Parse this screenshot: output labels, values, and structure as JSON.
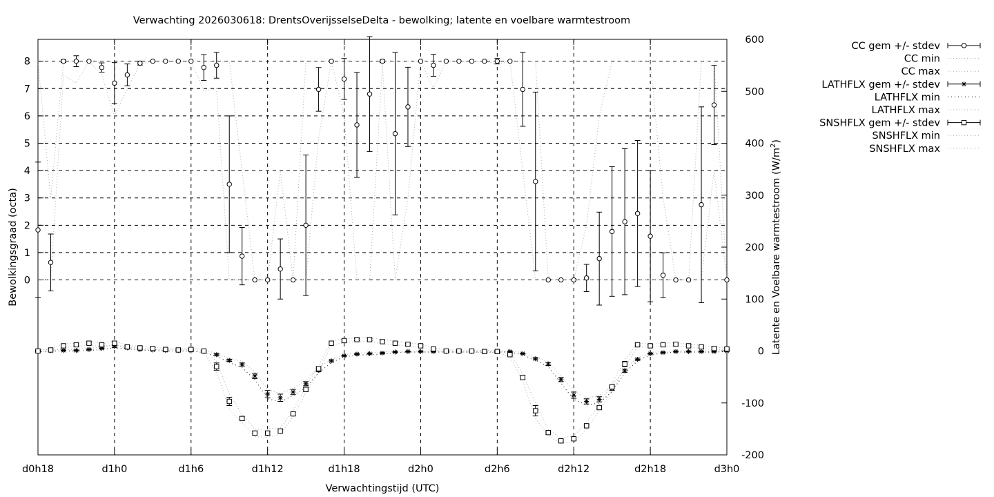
{
  "chart_data": {
    "type": "line",
    "title": "Verwachting 2026030618: DrentsOverijsselseDelta - bewolking; latente en voelbare warmtestroom",
    "xlabel": "Verwachtingstijd (UTC)",
    "ylabel": "Bewolkingsgraad (octa)",
    "y2label_main": "Latente en Voelbare warmtestroom (W/m",
    "y2label_sup": "2",
    "y2label_end": ")",
    "xlim": [
      0,
      54
    ],
    "ylim": [
      -6.4,
      8.8
    ],
    "y2lim": [
      -200,
      600
    ],
    "grid": true,
    "legend_position": "outside-right",
    "x_ticks": [
      {
        "x": 0,
        "label": "d0h18"
      },
      {
        "x": 6,
        "label": "d1h0"
      },
      {
        "x": 12,
        "label": "d1h6"
      },
      {
        "x": 18,
        "label": "d1h12"
      },
      {
        "x": 24,
        "label": "d1h18"
      },
      {
        "x": 30,
        "label": "d2h0"
      },
      {
        "x": 36,
        "label": "d2h6"
      },
      {
        "x": 42,
        "label": "d2h12"
      },
      {
        "x": 48,
        "label": "d2h18"
      },
      {
        "x": 54,
        "label": "d3h0"
      }
    ],
    "y_ticks": [
      0,
      1,
      2,
      3,
      4,
      5,
      6,
      7,
      8
    ],
    "y2_ticks": [
      -200,
      -100,
      0,
      100,
      200,
      300,
      400,
      500,
      600
    ],
    "legend": [
      {
        "label": "CC gem +/- stdev",
        "style": "circle-errorbar"
      },
      {
        "label": "CC min",
        "style": "dotted"
      },
      {
        "label": "CC max",
        "style": "dotted"
      },
      {
        "label": "LATHFLX gem +/- stdev",
        "style": "star-errorbar"
      },
      {
        "label": "LATHFLX min",
        "style": "dotted-dark"
      },
      {
        "label": "LATHFLX max",
        "style": "dotted"
      },
      {
        "label": "SNSHFLX gem +/- stdev",
        "style": "square-errorbar"
      },
      {
        "label": "SNSHFLX min",
        "style": "dotted"
      },
      {
        "label": "SNSHFLX max",
        "style": "dotted"
      }
    ],
    "series": [
      {
        "name": "CC gem +/- stdev",
        "axis": "y",
        "x": [
          0,
          1,
          2,
          3,
          4,
          5,
          6,
          7,
          8,
          9,
          10,
          11,
          12,
          13,
          14,
          15,
          16,
          17,
          18,
          19,
          20,
          21,
          22,
          23,
          24,
          25,
          26,
          27,
          28,
          29,
          30,
          31,
          32,
          33,
          34,
          35,
          36,
          37,
          38,
          39,
          40,
          41,
          42,
          43,
          44,
          45,
          46,
          47,
          48,
          49,
          50,
          51,
          52,
          53,
          54
        ],
        "mean": [
          1.83,
          0.64,
          8.0,
          8.0,
          8.0,
          7.77,
          7.2,
          7.5,
          7.93,
          8.0,
          8.0,
          8.0,
          8.0,
          7.77,
          7.85,
          3.5,
          0.87,
          0.0,
          0.0,
          0.4,
          0.0,
          2.0,
          6.97,
          8.0,
          7.35,
          5.67,
          6.8,
          8.0,
          5.35,
          6.33,
          8.0,
          7.85,
          8.0,
          8.0,
          8.0,
          8.0,
          8.0,
          8.0,
          6.97,
          3.6,
          0.0,
          0.0,
          0.0,
          0.07,
          0.78,
          1.77,
          2.13,
          2.43,
          1.6,
          0.17,
          0.0,
          0.0,
          2.75,
          6.4,
          0.0
        ],
        "stdev": [
          2.48,
          1.04,
          0.05,
          0.2,
          0.0,
          0.17,
          0.75,
          0.4,
          0.07,
          0.0,
          0.0,
          0.0,
          0.0,
          0.47,
          0.47,
          2.5,
          1.05,
          0.0,
          0.0,
          1.1,
          0.0,
          2.57,
          0.8,
          0.0,
          0.75,
          1.92,
          2.1,
          0.05,
          2.97,
          1.45,
          0.0,
          0.4,
          0.0,
          0.0,
          0.0,
          0.0,
          0.1,
          0.0,
          1.35,
          3.27,
          0.0,
          0.0,
          0.0,
          0.5,
          1.7,
          2.37,
          2.67,
          2.67,
          2.4,
          0.82,
          0.0,
          0.0,
          3.58,
          1.45,
          0.0
        ]
      },
      {
        "name": "CC min",
        "axis": "y",
        "x": [
          0,
          1,
          2,
          3,
          4,
          5,
          6,
          7,
          8,
          9,
          10,
          11,
          12,
          13,
          14,
          15,
          16,
          17,
          18,
          19,
          20,
          21,
          22,
          23,
          24,
          25,
          26,
          27,
          28,
          29,
          30,
          31,
          32,
          33,
          34,
          35,
          36,
          37,
          38,
          39,
          40,
          41,
          42,
          43,
          44,
          45,
          46,
          47,
          48,
          49,
          50,
          51,
          52,
          53,
          54
        ],
        "values": [
          0,
          0,
          7.5,
          7.2,
          8,
          7.5,
          6.0,
          7.0,
          7.9,
          8,
          8,
          8,
          8,
          6.9,
          7.0,
          0,
          0,
          0,
          0,
          0,
          0,
          0,
          5.2,
          8,
          6.0,
          0,
          0,
          7.9,
          0,
          3.0,
          8,
          7.0,
          8,
          8,
          8,
          8,
          7.9,
          8,
          4.0,
          0,
          0,
          0,
          0,
          0,
          0,
          0,
          0,
          0,
          0,
          0,
          0,
          0,
          0,
          4.0,
          0
        ]
      },
      {
        "name": "CC max",
        "axis": "y",
        "x": [
          0,
          1,
          2,
          3,
          4,
          5,
          6,
          7,
          8,
          9,
          10,
          11,
          12,
          13,
          14,
          15,
          16,
          17,
          18,
          19,
          20,
          21,
          22,
          23,
          24,
          25,
          26,
          27,
          28,
          29,
          30,
          31,
          32,
          33,
          34,
          35,
          36,
          37,
          38,
          39,
          40,
          41,
          42,
          43,
          44,
          45,
          46,
          47,
          48,
          49,
          50,
          51,
          52,
          53,
          54
        ],
        "values": [
          8,
          3.0,
          8,
          8,
          8,
          8,
          8,
          8,
          8,
          8,
          8,
          8,
          8,
          8,
          8,
          8,
          4.0,
          0,
          0,
          4.0,
          0,
          8,
          8,
          8,
          8,
          8,
          8,
          8,
          8,
          8,
          8,
          8,
          8,
          8,
          8,
          8,
          8,
          8,
          8,
          8,
          0,
          0,
          0,
          2.0,
          6.0,
          8,
          8,
          8,
          8,
          3.0,
          0,
          0,
          8,
          8,
          0
        ]
      },
      {
        "name": "LATHFLX gem +/- stdev",
        "axis": "y2",
        "x": [
          0,
          1,
          2,
          3,
          4,
          5,
          6,
          7,
          8,
          9,
          10,
          11,
          12,
          13,
          14,
          15,
          16,
          17,
          18,
          19,
          20,
          21,
          22,
          23,
          24,
          25,
          26,
          27,
          28,
          29,
          30,
          31,
          32,
          33,
          34,
          35,
          36,
          37,
          38,
          39,
          40,
          41,
          42,
          43,
          44,
          45,
          46,
          47,
          48,
          49,
          50,
          51,
          52,
          53,
          54
        ],
        "mean": [
          0,
          1,
          1,
          1,
          3,
          5,
          9,
          6,
          3,
          2,
          1,
          1,
          1,
          -1,
          -7,
          -18,
          -26,
          -48,
          -83,
          -90,
          -79,
          -63,
          -37,
          -19,
          -9,
          -6,
          -5,
          -4,
          -2,
          -1,
          -1,
          -1,
          -1,
          -1,
          -1,
          -1,
          -1,
          -1,
          -5,
          -15,
          -25,
          -55,
          -85,
          -97,
          -93,
          -72,
          -38,
          -16,
          -5,
          -3,
          -1,
          -1,
          -1,
          -1,
          0
        ],
        "stdev": [
          1,
          1,
          1,
          1,
          1,
          1,
          2,
          1,
          1,
          1,
          1,
          1,
          1,
          1,
          2,
          2,
          3,
          5,
          7,
          7,
          5,
          4,
          3,
          2,
          1,
          1,
          1,
          1,
          1,
          1,
          1,
          1,
          1,
          1,
          1,
          1,
          1,
          1,
          1,
          2,
          3,
          4,
          6,
          5,
          5,
          4,
          3,
          2,
          1,
          1,
          1,
          1,
          1,
          1,
          1
        ]
      },
      {
        "name": "LATHFLX min",
        "axis": "y2",
        "x": [
          0,
          1,
          2,
          3,
          4,
          5,
          6,
          7,
          8,
          9,
          10,
          11,
          12,
          13,
          14,
          15,
          16,
          17,
          18,
          19,
          20,
          21,
          22,
          23,
          24,
          25,
          26,
          27,
          28,
          29,
          30,
          31,
          32,
          33,
          34,
          35,
          36,
          37,
          38,
          39,
          40,
          41,
          42,
          43,
          44,
          45,
          46,
          47,
          48,
          49,
          50,
          51,
          52,
          53,
          54
        ],
        "values": [
          -1,
          0,
          0,
          0,
          1,
          3,
          6,
          4,
          2,
          1,
          0,
          0,
          0,
          -3,
          -10,
          -22,
          -32,
          -55,
          -92,
          -98,
          -86,
          -70,
          -42,
          -22,
          -11,
          -8,
          -7,
          -6,
          -3,
          -2,
          -2,
          -2,
          -2,
          -2,
          -2,
          -2,
          -2,
          -2,
          -7,
          -18,
          -30,
          -62,
          -93,
          -104,
          -100,
          -78,
          -42,
          -19,
          -7,
          -4,
          -2,
          -2,
          -2,
          -2,
          -1
        ]
      },
      {
        "name": "LATHFLX max",
        "axis": "y2",
        "x": [
          0,
          1,
          2,
          3,
          4,
          5,
          6,
          7,
          8,
          9,
          10,
          11,
          12,
          13,
          14,
          15,
          16,
          17,
          18,
          19,
          20,
          21,
          22,
          23,
          24,
          25,
          26,
          27,
          28,
          29,
          30,
          31,
          32,
          33,
          34,
          35,
          36,
          37,
          38,
          39,
          40,
          41,
          42,
          43,
          44,
          45,
          46,
          47,
          48,
          49,
          50,
          51,
          52,
          53,
          54
        ],
        "values": [
          2,
          3,
          3,
          3,
          5,
          8,
          12,
          8,
          5,
          4,
          3,
          3,
          3,
          1,
          -4,
          -14,
          -20,
          -40,
          -74,
          -82,
          -72,
          -56,
          -32,
          -16,
          -7,
          -4,
          -3,
          -2,
          0,
          0,
          0,
          0,
          0,
          0,
          0,
          0,
          0,
          0,
          -3,
          -12,
          -20,
          -48,
          -77,
          -90,
          -86,
          -66,
          -34,
          -13,
          -3,
          -1,
          0,
          0,
          0,
          0,
          1
        ]
      },
      {
        "name": "SNSHFLX gem +/- stdev",
        "axis": "y2",
        "x": [
          0,
          1,
          2,
          3,
          4,
          5,
          6,
          7,
          8,
          9,
          10,
          11,
          12,
          13,
          14,
          15,
          16,
          17,
          18,
          19,
          20,
          21,
          22,
          23,
          24,
          25,
          26,
          27,
          28,
          29,
          30,
          31,
          32,
          33,
          34,
          35,
          36,
          37,
          38,
          39,
          40,
          41,
          42,
          43,
          44,
          45,
          46,
          47,
          48,
          49,
          50,
          51,
          52,
          53,
          54
        ],
        "mean": [
          0,
          2,
          10,
          12,
          15,
          12,
          15,
          8,
          6,
          5,
          3,
          2,
          3,
          0,
          -30,
          -97,
          -130,
          -158,
          -158,
          -154,
          -121,
          -74,
          -34,
          15,
          20,
          22,
          22,
          18,
          15,
          13,
          10,
          4,
          0,
          0,
          0,
          -1,
          -1,
          -7,
          -51,
          -115,
          -157,
          -173,
          -169,
          -144,
          -109,
          -69,
          -25,
          12,
          10,
          12,
          13,
          10,
          8,
          5,
          4
        ],
        "stdev": [
          2,
          2,
          3,
          2,
          3,
          2,
          3,
          2,
          2,
          2,
          2,
          2,
          2,
          2,
          7,
          8,
          4,
          4,
          4,
          4,
          3,
          4,
          3,
          2,
          2,
          2,
          2,
          2,
          2,
          2,
          2,
          2,
          2,
          2,
          2,
          2,
          2,
          2,
          4,
          10,
          3,
          2,
          3,
          2,
          3,
          4,
          5,
          2,
          2,
          2,
          2,
          2,
          2,
          2,
          2
        ]
      },
      {
        "name": "SNSHFLX min",
        "axis": "y2",
        "x": [
          0,
          1,
          2,
          3,
          4,
          5,
          6,
          7,
          8,
          9,
          10,
          11,
          12,
          13,
          14,
          15,
          16,
          17,
          18,
          19,
          20,
          21,
          22,
          23,
          24,
          25,
          26,
          27,
          28,
          29,
          30,
          31,
          32,
          33,
          34,
          35,
          36,
          37,
          38,
          39,
          40,
          41,
          42,
          43,
          44,
          45,
          46,
          47,
          48,
          49,
          50,
          51,
          52,
          53,
          54
        ],
        "values": [
          -2,
          0,
          6,
          9,
          11,
          9,
          11,
          5,
          3,
          3,
          1,
          0,
          1,
          -3,
          -40,
          -112,
          -138,
          -165,
          -166,
          -160,
          -127,
          -80,
          -40,
          11,
          16,
          18,
          18,
          14,
          11,
          10,
          7,
          2,
          -2,
          -2,
          -2,
          -3,
          -3,
          -11,
          -58,
          -130,
          -163,
          -178,
          -175,
          -150,
          -115,
          -76,
          -32,
          8,
          7,
          9,
          10,
          7,
          5,
          3,
          2
        ]
      },
      {
        "name": "SNSHFLX max",
        "axis": "y2",
        "x": [
          0,
          1,
          2,
          3,
          4,
          5,
          6,
          7,
          8,
          9,
          10,
          11,
          12,
          13,
          14,
          15,
          16,
          17,
          18,
          19,
          20,
          21,
          22,
          23,
          24,
          25,
          26,
          27,
          28,
          29,
          30,
          31,
          32,
          33,
          34,
          35,
          36,
          37,
          38,
          39,
          40,
          41,
          42,
          43,
          44,
          45,
          46,
          47,
          48,
          49,
          50,
          51,
          52,
          53,
          54
        ],
        "values": [
          2,
          4,
          14,
          15,
          19,
          15,
          19,
          11,
          9,
          7,
          5,
          4,
          5,
          3,
          -20,
          -82,
          -122,
          -151,
          -150,
          -148,
          -115,
          -68,
          -28,
          19,
          24,
          26,
          26,
          22,
          19,
          16,
          13,
          6,
          2,
          2,
          2,
          1,
          1,
          -3,
          -44,
          -100,
          -151,
          -168,
          -163,
          -138,
          -103,
          -62,
          -18,
          16,
          13,
          15,
          16,
          13,
          11,
          7,
          6
        ]
      }
    ]
  }
}
